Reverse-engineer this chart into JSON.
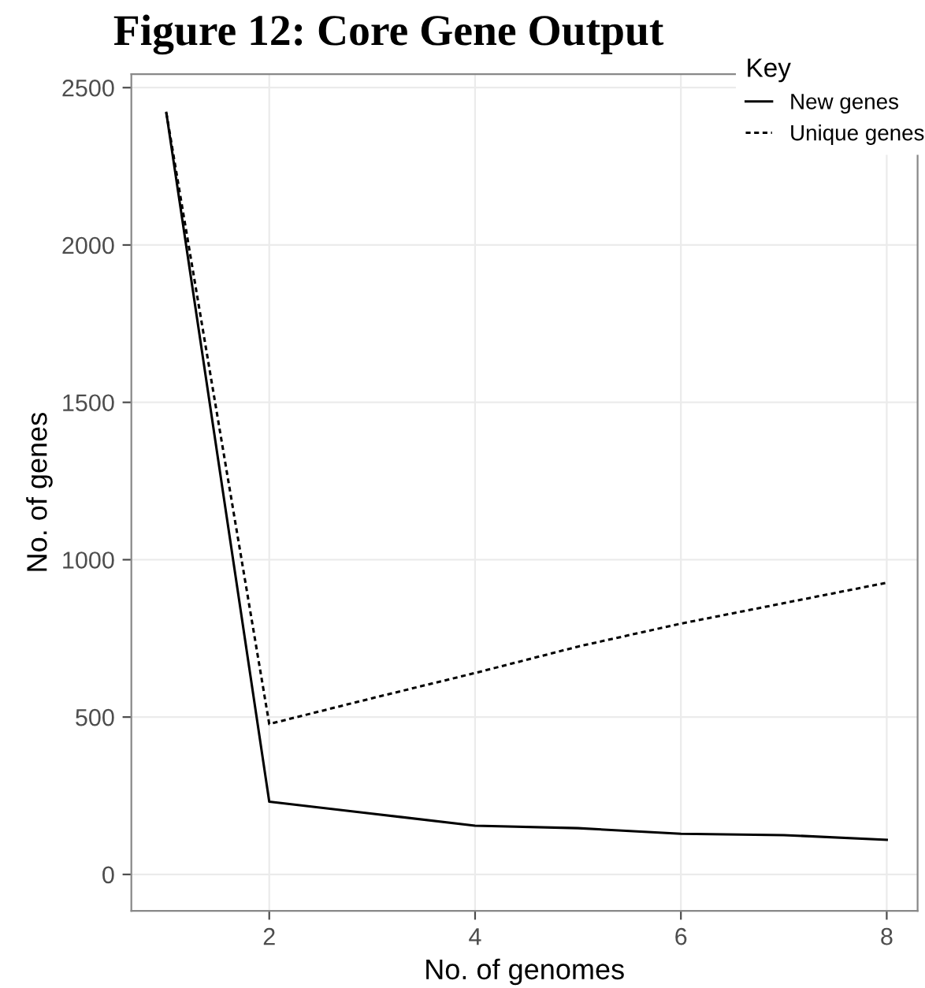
{
  "chart_data": {
    "type": "line",
    "title": "Figure 12: Core Gene Output",
    "xlabel": "No. of genomes",
    "ylabel": "No. of genes",
    "legend_title": "Key",
    "x": [
      1,
      2,
      3,
      4,
      5,
      6,
      7,
      8
    ],
    "series": [
      {
        "name": "New genes",
        "color": "#000000",
        "line_style": "solid",
        "values": [
          2420,
          231,
          193,
          155,
          147,
          129,
          125,
          110
        ]
      },
      {
        "name": "Unique genes",
        "color": "#000000",
        "line_style": "dotted",
        "values": [
          2420,
          478,
          560,
          640,
          724,
          797,
          862,
          927
        ]
      }
    ],
    "xlim": [
      0.66,
      8.3
    ],
    "ylim": [
      -116,
      2543
    ],
    "xticks": [
      2,
      4,
      6,
      8
    ],
    "yticks": [
      0,
      500,
      1000,
      1500,
      2000,
      2500
    ],
    "grid": true,
    "legend": "top right"
  }
}
